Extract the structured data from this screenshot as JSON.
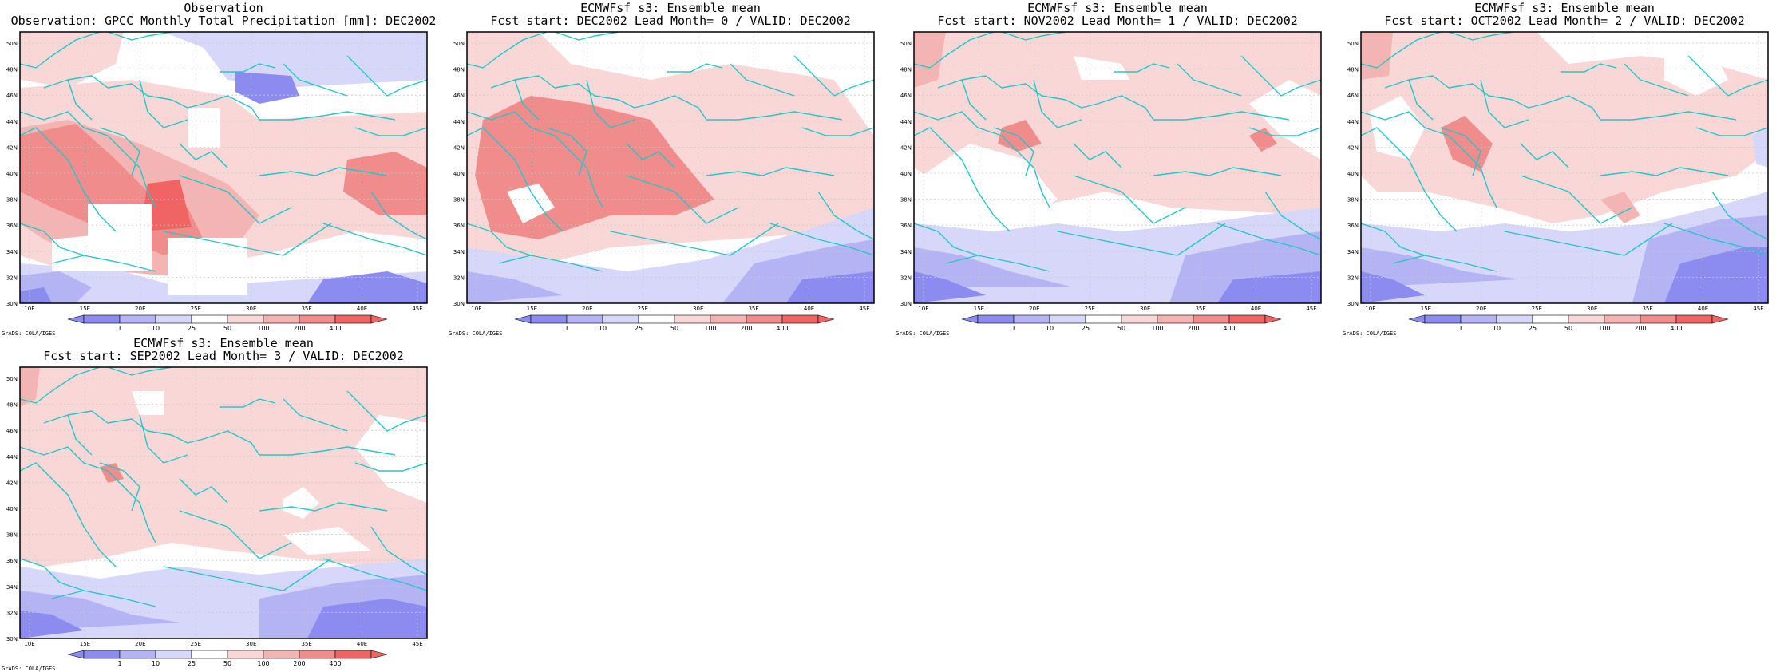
{
  "colors": {
    "blue3": "#8c8cf0",
    "blue2": "#b4b4f5",
    "blue1": "#d7d7fa",
    "white": "#ffffff",
    "red1": "#fad7d7",
    "red2": "#f5b4b4",
    "red3": "#f08c8c",
    "red4": "#f06464",
    "coast": "#22c8c8",
    "grid": "#c8c8c8"
  },
  "map": {
    "lat_labels": [
      "50N",
      "48N",
      "46N",
      "44N",
      "42N",
      "40N",
      "38N",
      "36N",
      "34N",
      "32N",
      "30N"
    ],
    "lon_labels": [
      "10E",
      "15E",
      "20E",
      "25E",
      "30E",
      "35E",
      "40E",
      "45E"
    ]
  },
  "colorbar": {
    "labels": [
      "1",
      "10",
      "25",
      "50",
      "100",
      "200",
      "400"
    ]
  },
  "credit": "GrADS: COLA/IGES",
  "panels": [
    {
      "id": "obs",
      "title1": "Observation",
      "title2": "Observation: GPCC Monthly Total Precipitation [mm]: DEC2002"
    },
    {
      "id": "lead0",
      "title1": "ECMWFsf s3: Ensemble mean",
      "title2": "Fcst start: DEC2002  Lead Month= 0 / VALID: DEC2002"
    },
    {
      "id": "lead1",
      "title1": "ECMWFsf s3: Ensemble mean",
      "title2": "Fcst start: NOV2002  Lead Month= 1 / VALID: DEC2002"
    },
    {
      "id": "lead2",
      "title1": "ECMWFsf s3: Ensemble mean",
      "title2": "Fcst start: OCT2002  Lead Month= 2 / VALID: DEC2002"
    },
    {
      "id": "lead3",
      "title1": "ECMWFsf s3: Ensemble mean",
      "title2": "Fcst start: SEP2002  Lead Month= 3 / VALID: DEC2002"
    }
  ]
}
